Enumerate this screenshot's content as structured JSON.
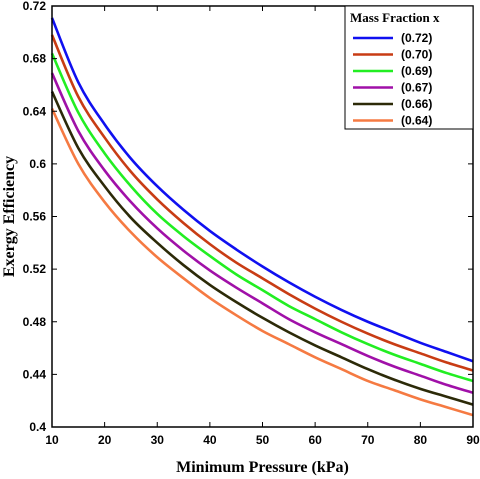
{
  "chart_data": {
    "type": "line",
    "xlabel": "Minimum Pressure (kPa)",
    "ylabel": "Exergy Efficiency",
    "xlim": [
      10,
      90
    ],
    "ylim": [
      0.4,
      0.72
    ],
    "xticks": [
      10,
      20,
      30,
      40,
      50,
      60,
      70,
      80,
      90
    ],
    "yticks": [
      0.4,
      0.44,
      0.48,
      0.52,
      0.56,
      0.6,
      0.64,
      0.68,
      0.72
    ],
    "ytick_labels": [
      "0.4",
      "0.44",
      "0.48",
      "0.52",
      "0.56",
      "0.6",
      "0.64",
      "0.68",
      "0.72"
    ],
    "x": [
      10,
      15,
      20,
      25,
      30,
      35,
      40,
      45,
      50,
      55,
      60,
      65,
      70,
      75,
      80,
      85,
      90
    ],
    "legend": {
      "title": "Mass Fraction x",
      "position": "top-right"
    },
    "grid": false,
    "series": [
      {
        "name": "(0.72)",
        "color": "#1010f0",
        "values": [
          0.711,
          0.662,
          0.63,
          0.604,
          0.583,
          0.565,
          0.549,
          0.535,
          0.522,
          0.51,
          0.499,
          0.489,
          0.48,
          0.472,
          0.464,
          0.457,
          0.45
        ]
      },
      {
        "name": "(0.70)",
        "color": "#c83c14",
        "values": [
          0.698,
          0.651,
          0.62,
          0.594,
          0.573,
          0.555,
          0.539,
          0.525,
          0.513,
          0.501,
          0.49,
          0.48,
          0.471,
          0.463,
          0.456,
          0.449,
          0.443
        ]
      },
      {
        "name": "(0.69)",
        "color": "#22ee22",
        "values": [
          0.684,
          0.639,
          0.608,
          0.583,
          0.562,
          0.545,
          0.53,
          0.516,
          0.504,
          0.492,
          0.482,
          0.472,
          0.463,
          0.455,
          0.448,
          0.441,
          0.435
        ]
      },
      {
        "name": "(0.67)",
        "color": "#a010a8",
        "values": [
          0.669,
          0.625,
          0.595,
          0.571,
          0.551,
          0.534,
          0.519,
          0.506,
          0.494,
          0.482,
          0.472,
          0.463,
          0.454,
          0.446,
          0.439,
          0.432,
          0.426
        ]
      },
      {
        "name": "(0.66)",
        "color": "#2c2a08",
        "values": [
          0.655,
          0.612,
          0.583,
          0.559,
          0.54,
          0.523,
          0.508,
          0.495,
          0.483,
          0.472,
          0.462,
          0.453,
          0.444,
          0.436,
          0.429,
          0.423,
          0.417
        ]
      },
      {
        "name": "(0.64)",
        "color": "#f57a42",
        "values": [
          0.642,
          0.6,
          0.571,
          0.548,
          0.529,
          0.513,
          0.498,
          0.485,
          0.473,
          0.463,
          0.453,
          0.444,
          0.435,
          0.428,
          0.421,
          0.415,
          0.409
        ]
      }
    ]
  }
}
